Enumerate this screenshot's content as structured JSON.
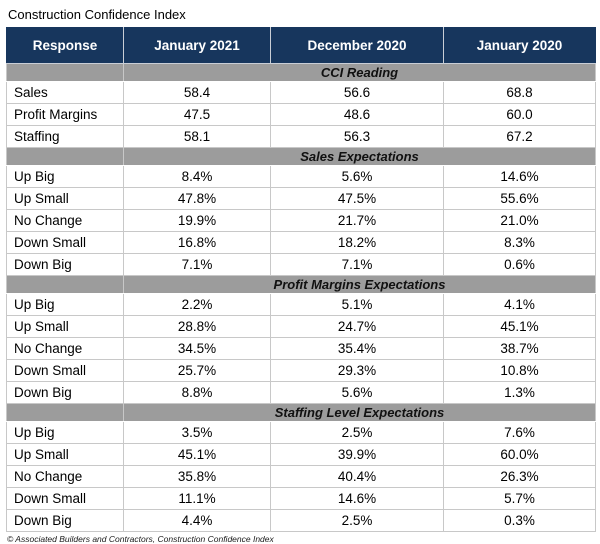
{
  "title": "Construction Confidence Index",
  "footer": "© Associated Builders and Contractors, Construction Confidence Index",
  "colors": {
    "header_bg": "#17365D",
    "header_text": "#FFFFFF",
    "section_bg": "#9C9C9C",
    "grid_border": "#C8C8C8"
  },
  "chart_data": {
    "type": "table",
    "title": "Construction Confidence Index",
    "columns": [
      "Response",
      "January 2021",
      "December 2020",
      "January 2020"
    ],
    "sections": [
      {
        "header": "CCI Reading",
        "rows": [
          [
            "Sales",
            "58.4",
            "56.6",
            "68.8"
          ],
          [
            "Profit Margins",
            "47.5",
            "48.6",
            "60.0"
          ],
          [
            "Staffing",
            "58.1",
            "56.3",
            "67.2"
          ]
        ]
      },
      {
        "header": "Sales Expectations",
        "rows": [
          [
            "Up Big",
            "8.4%",
            "5.6%",
            "14.6%"
          ],
          [
            "Up Small",
            "47.8%",
            "47.5%",
            "55.6%"
          ],
          [
            "No Change",
            "19.9%",
            "21.7%",
            "21.0%"
          ],
          [
            "Down Small",
            "16.8%",
            "18.2%",
            "8.3%"
          ],
          [
            "Down Big",
            "7.1%",
            "7.1%",
            "0.6%"
          ]
        ]
      },
      {
        "header": "Profit Margins Expectations",
        "rows": [
          [
            "Up Big",
            "2.2%",
            "5.1%",
            "4.1%"
          ],
          [
            "Up Small",
            "28.8%",
            "24.7%",
            "45.1%"
          ],
          [
            "No Change",
            "34.5%",
            "35.4%",
            "38.7%"
          ],
          [
            "Down Small",
            "25.7%",
            "29.3%",
            "10.8%"
          ],
          [
            "Down Big",
            "8.8%",
            "5.6%",
            "1.3%"
          ]
        ]
      },
      {
        "header": "Staffing Level Expectations",
        "rows": [
          [
            "Up Big",
            "3.5%",
            "2.5%",
            "7.6%"
          ],
          [
            "Up Small",
            "45.1%",
            "39.9%",
            "60.0%"
          ],
          [
            "No Change",
            "35.8%",
            "40.4%",
            "26.3%"
          ],
          [
            "Down Small",
            "11.1%",
            "14.6%",
            "5.7%"
          ],
          [
            "Down Big",
            "4.4%",
            "2.5%",
            "0.3%"
          ]
        ]
      }
    ]
  }
}
